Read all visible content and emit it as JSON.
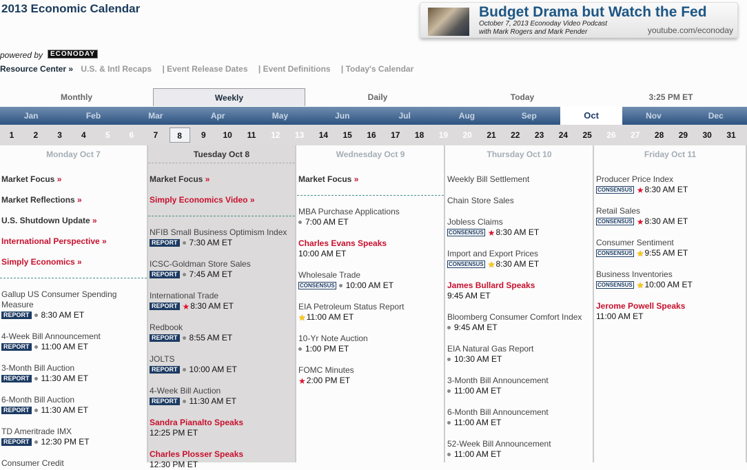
{
  "page_title": "2013 Economic Calendar",
  "promo": {
    "headline": "Budget Drama but Watch the Fed",
    "line1": "October 7, 2013 Econoday Video Podcast",
    "line2": "with Mark Rogers and Mark Pender",
    "url": "youtube.com/econoday"
  },
  "powered_by": "powered by",
  "logo_text": "ECONODAY",
  "nav": {
    "resource_center": "Resource Center »",
    "links": [
      "U.S. & Intl Recaps",
      "|  Event Release Dates",
      "|  Event Definitions",
      "|  Today's Calendar"
    ]
  },
  "view_tabs": [
    "Monthly",
    "Weekly",
    "Daily",
    "Today",
    "3:25 PM ET"
  ],
  "selected_view": "Weekly",
  "months": [
    "Jan",
    "Feb",
    "Mar",
    "Apr",
    "May",
    "Jun",
    "Jul",
    "Aug",
    "Sep",
    "Oct",
    "Nov",
    "Dec"
  ],
  "selected_month": "Oct",
  "days": [
    1,
    2,
    3,
    4,
    5,
    6,
    7,
    8,
    9,
    10,
    11,
    12,
    13,
    14,
    15,
    16,
    17,
    18,
    19,
    20,
    21,
    22,
    23,
    24,
    25,
    26,
    27,
    28,
    29,
    30,
    31
  ],
  "weekend_days": [
    5,
    6,
    12,
    13,
    19,
    20,
    26,
    27
  ],
  "selected_day": 8,
  "colors": {
    "accent_red": "#c8102e",
    "nav_blue": "#2d5381",
    "badge_navy": "#1c3b63"
  },
  "columns": [
    {
      "header": "Monday Oct 7",
      "links": [
        {
          "label": "Market Focus",
          "red": false
        },
        {
          "label": "Market Reflections",
          "red": false
        },
        {
          "label": "U.S. Shutdown Update",
          "red": false
        },
        {
          "label": "International Perspective",
          "red": true
        },
        {
          "label": "Simply Economics",
          "red": true
        }
      ],
      "events": [
        {
          "title": "Gallup US Consumer Spending Measure",
          "badge": "REPORT",
          "marker": "dot",
          "time": "8:30 AM ET"
        },
        {
          "title": "4-Week Bill Announcement",
          "badge": "REPORT",
          "marker": "dot",
          "time": "11:00 AM ET"
        },
        {
          "title": "3-Month Bill Auction",
          "badge": "REPORT",
          "marker": "dot",
          "time": "11:30 AM ET"
        },
        {
          "title": "6-Month Bill Auction",
          "badge": "REPORT",
          "marker": "dot",
          "time": "11:30 AM ET"
        },
        {
          "title": "TD Ameritrade IMX",
          "badge": "REPORT",
          "marker": "dot",
          "time": "12:30 PM ET"
        },
        {
          "title": "Consumer Credit",
          "badge": "",
          "marker": "",
          "time": ""
        }
      ]
    },
    {
      "header": "Tuesday Oct 8",
      "links": [
        {
          "label": "Market Focus",
          "red": false
        },
        {
          "label": "Simply Economics Video",
          "red": true
        }
      ],
      "events": [
        {
          "title": "NFIB Small Business Optimism Index",
          "badge": "REPORT",
          "marker": "dot",
          "time": "7:30 AM ET"
        },
        {
          "title": "ICSC-Goldman Store Sales",
          "badge": "REPORT",
          "marker": "dot",
          "time": "7:45 AM ET"
        },
        {
          "title": "International Trade",
          "badge": "REPORT",
          "marker": "red-star",
          "time": "8:30 AM ET"
        },
        {
          "title": "Redbook",
          "badge": "REPORT",
          "marker": "dot",
          "time": "8:55 AM ET"
        },
        {
          "title": "JOLTS",
          "badge": "REPORT",
          "marker": "dot",
          "time": "10:00 AM ET"
        },
        {
          "title": "4-Week Bill Auction",
          "badge": "REPORT",
          "marker": "dot",
          "time": "11:30 AM ET"
        },
        {
          "title": "Sandra Pianalto Speaks",
          "speaker": true,
          "badge": "",
          "marker": "",
          "time": "12:25 PM ET"
        },
        {
          "title": "Charles Plosser Speaks",
          "speaker": true,
          "badge": "",
          "marker": "",
          "time": "12:30 PM ET"
        }
      ]
    },
    {
      "header": "Wednesday Oct 9",
      "links": [
        {
          "label": "Market Focus",
          "red": false
        }
      ],
      "events": [
        {
          "title": "MBA Purchase Applications",
          "badge": "",
          "marker": "dot",
          "time": "7:00 AM ET"
        },
        {
          "title": "Charles Evans Speaks",
          "speaker": true,
          "badge": "",
          "marker": "",
          "time": "10:00 AM ET"
        },
        {
          "title": "Wholesale Trade",
          "badge": "CONSENSUS",
          "marker": "dot",
          "time": "10:00 AM ET"
        },
        {
          "title": "EIA Petroleum Status Report",
          "badge": "",
          "marker": "yellow-star",
          "time": "11:00 AM ET"
        },
        {
          "title": "10-Yr Note Auction",
          "badge": "",
          "marker": "dot",
          "time": "1:00 PM ET"
        },
        {
          "title": "FOMC Minutes",
          "badge": "",
          "marker": "red-star",
          "time": "2:00 PM ET"
        }
      ]
    },
    {
      "header": "Thursday Oct 10",
      "links": [],
      "events": [
        {
          "title": "Weekly Bill Settlement",
          "badge": "",
          "marker": "",
          "time": ""
        },
        {
          "title": "Chain Store Sales",
          "badge": "",
          "marker": "",
          "time": ""
        },
        {
          "title": "Jobless Claims",
          "badge": "CONSENSUS",
          "marker": "red-star",
          "time": "8:30 AM ET"
        },
        {
          "title": "Import and Export Prices",
          "badge": "CONSENSUS",
          "marker": "yellow-star",
          "time": "8:30 AM ET"
        },
        {
          "title": "James Bullard Speaks",
          "speaker": true,
          "badge": "",
          "marker": "",
          "time": "9:45 AM ET"
        },
        {
          "title": "Bloomberg Consumer Comfort Index",
          "badge": "",
          "marker": "dot",
          "time": "9:45 AM ET"
        },
        {
          "title": "EIA Natural Gas Report",
          "badge": "",
          "marker": "dot",
          "time": "10:30 AM ET"
        },
        {
          "title": "3-Month Bill Announcement",
          "badge": "",
          "marker": "dot",
          "time": "11:00 AM ET"
        },
        {
          "title": "6-Month Bill Announcement",
          "badge": "",
          "marker": "dot",
          "time": "11:00 AM ET"
        },
        {
          "title": "52-Week Bill Announcement",
          "badge": "",
          "marker": "dot",
          "time": "11:00 AM ET"
        }
      ]
    },
    {
      "header": "Friday Oct 11",
      "links": [],
      "events": [
        {
          "title": "Producer Price Index",
          "badge": "CONSENSUS",
          "marker": "red-star",
          "time": "8:30 AM ET"
        },
        {
          "title": "Retail Sales",
          "badge": "CONSENSUS",
          "marker": "red-star",
          "time": "8:30 AM ET"
        },
        {
          "title": "Consumer Sentiment",
          "badge": "CONSENSUS",
          "marker": "yellow-star",
          "time": "9:55 AM ET"
        },
        {
          "title": "Business Inventories",
          "badge": "CONSENSUS",
          "marker": "yellow-star",
          "time": "10:00 AM ET"
        },
        {
          "title": "Jerome Powell Speaks",
          "speaker": true,
          "badge": "",
          "marker": "",
          "time": "11:00 AM ET"
        }
      ]
    }
  ]
}
